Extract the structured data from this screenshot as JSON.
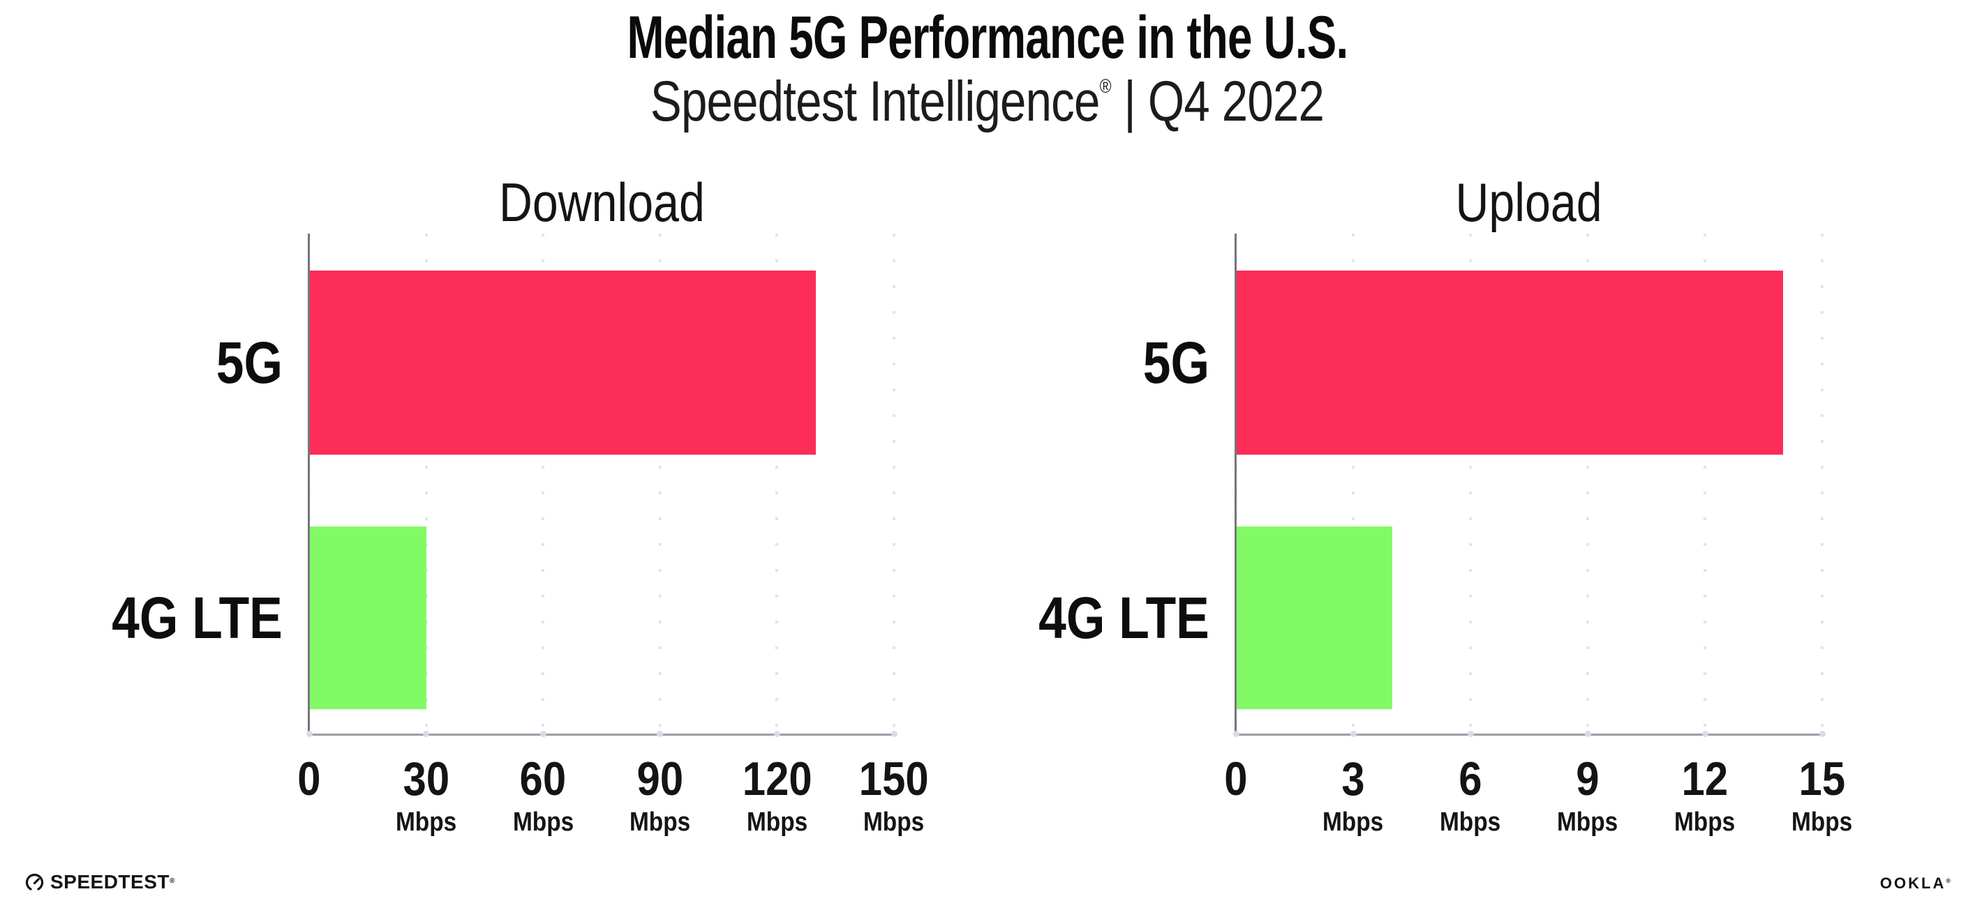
{
  "header": {
    "title": "Median 5G Performance in the U.S.",
    "subtitle_brand": "Speedtest Intelligence",
    "subtitle_reg": "®",
    "subtitle_rest": " | Q4 2022"
  },
  "chart_data": [
    {
      "type": "bar",
      "orientation": "horizontal",
      "title": "Download",
      "categories": [
        "5G",
        "4G LTE"
      ],
      "values": [
        130,
        30
      ],
      "unit": "Mbps",
      "xlim": [
        0,
        150
      ],
      "xticks": [
        0,
        30,
        60,
        90,
        120,
        150
      ],
      "grid": "vertical-dotted",
      "bar_colors": [
        "#FC2D57",
        "#81FA66"
      ],
      "legend": "none"
    },
    {
      "type": "bar",
      "orientation": "horizontal",
      "title": "Upload",
      "categories": [
        "5G",
        "4G LTE"
      ],
      "values": [
        14,
        4
      ],
      "unit": "Mbps",
      "xlim": [
        0,
        15
      ],
      "xticks": [
        0,
        3,
        6,
        9,
        12,
        15
      ],
      "grid": "vertical-dotted",
      "bar_colors": [
        "#FC2D57",
        "#81FA66"
      ],
      "legend": "none"
    }
  ],
  "colors": {
    "bar_5g": "#FC2D57",
    "bar_4g_lte": "#81FA66",
    "axis": "#9C9DA5",
    "spine": "#75767E",
    "gridline": "#E2E3EB",
    "tick_dot": "#D8DAE5",
    "text": "#111111"
  },
  "footer": {
    "speedtest_label": "SPEEDTEST",
    "speedtest_reg": "®",
    "ookla_label": "OOKLA",
    "ookla_reg": "®"
  }
}
